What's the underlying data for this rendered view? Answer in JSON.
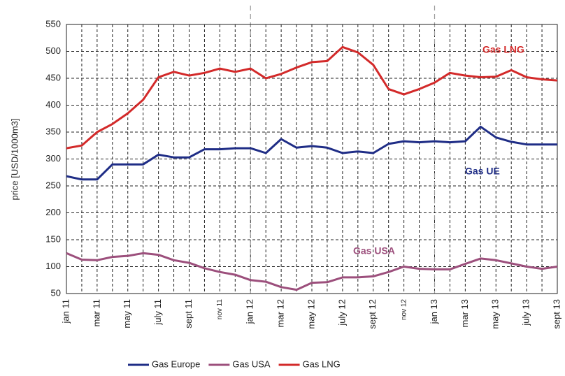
{
  "chart_data": {
    "type": "line",
    "y_label": "price [USD/1000m3]",
    "categories": [
      "jan 11",
      null,
      "mar 11",
      null,
      "may 11",
      null,
      "july 11",
      null,
      "sept 11",
      null,
      "nov 11",
      null,
      "jan 12",
      null,
      "mar 12",
      null,
      "may 12",
      null,
      "july 12",
      null,
      "sept 12",
      null,
      "nov 12",
      null,
      "jan 13",
      null,
      "mar 13",
      null,
      "may 13",
      null,
      "july 13",
      null,
      "sept 13"
    ],
    "series": [
      {
        "name": "Gas Europe",
        "color": "#1f2d86",
        "values": [
          268,
          262,
          262,
          290,
          290,
          290,
          308,
          303,
          303,
          318,
          318,
          320,
          320,
          311,
          337,
          321,
          324,
          321,
          311,
          314,
          311,
          328,
          333,
          331,
          333,
          331,
          333,
          360,
          340,
          332,
          327,
          327,
          327
        ]
      },
      {
        "name": "Gas USA",
        "color": "#9c4f7c",
        "values": [
          125,
          113,
          112,
          118,
          120,
          125,
          122,
          112,
          107,
          97,
          90,
          85,
          75,
          72,
          62,
          57,
          70,
          71,
          80,
          80,
          82,
          90,
          100,
          96,
          95,
          95,
          105,
          115,
          112,
          106,
          100,
          96,
          100
        ]
      },
      {
        "name": "Gas LNG",
        "color": "#d32a2a",
        "values": [
          320,
          325,
          350,
          365,
          385,
          410,
          452,
          462,
          455,
          460,
          468,
          462,
          468,
          450,
          458,
          470,
          480,
          482,
          508,
          498,
          475,
          430,
          420,
          430,
          442,
          460,
          455,
          452,
          453,
          465,
          452,
          448,
          446
        ]
      }
    ],
    "annotations": [
      {
        "text": "Gas LNG",
        "color": "#d32a2a"
      },
      {
        "text": "Gas UE",
        "color": "#1f2d86"
      },
      {
        "text": "Gas USA",
        "color": "#9c4f7c"
      }
    ],
    "ylim": [
      50,
      550
    ],
    "yticks": [
      50,
      100,
      150,
      200,
      250,
      300,
      350,
      400,
      450,
      500,
      550
    ],
    "grid": true
  }
}
